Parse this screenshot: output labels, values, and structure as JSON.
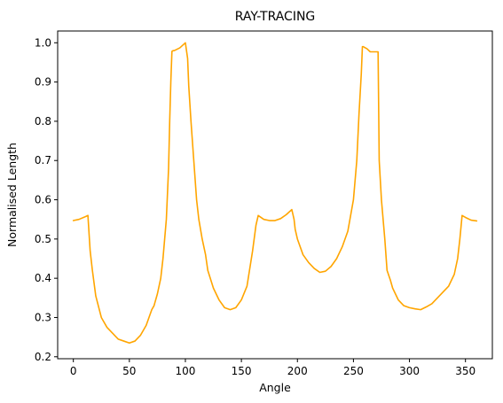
{
  "chart_data": {
    "type": "line",
    "title": "RAY-TRACING",
    "xlabel": "Angle",
    "ylabel": "Normalised Length",
    "xlim": [
      -14,
      374
    ],
    "ylim": [
      0.195,
      1.03
    ],
    "xticks": [
      0,
      50,
      100,
      150,
      200,
      250,
      300,
      350
    ],
    "yticks": [
      0.2,
      0.3,
      0.4,
      0.5,
      0.6,
      0.7,
      0.8,
      0.9,
      1.0
    ],
    "ytick_labels": [
      "0.2",
      "0.3",
      "0.4",
      "0.5",
      "0.6",
      "0.7",
      "0.8",
      "0.9",
      "1.0"
    ],
    "grid": false,
    "series": [
      {
        "color": "#FFA500",
        "x": [
          0,
          5,
          10,
          13,
          15,
          17,
          20,
          25,
          30,
          35,
          40,
          45,
          50,
          55,
          60,
          65,
          70,
          72,
          75,
          78,
          80,
          83,
          85,
          86,
          87,
          88,
          89,
          90,
          95,
          100,
          102,
          103,
          105,
          107,
          110,
          112,
          115,
          118,
          120,
          125,
          130,
          135,
          140,
          145,
          150,
          155,
          160,
          163,
          165,
          167,
          170,
          175,
          180,
          185,
          190,
          195,
          197,
          198,
          200,
          205,
          210,
          215,
          220,
          225,
          230,
          235,
          240,
          245,
          250,
          253,
          255,
          257,
          258,
          259,
          260,
          262,
          265,
          270,
          272,
          273,
          275,
          278,
          280,
          283,
          285,
          290,
          295,
          300,
          305,
          310,
          315,
          320,
          325,
          330,
          335,
          340,
          343,
          345,
          347,
          350,
          355,
          360
        ],
        "y": [
          0.547,
          0.55,
          0.556,
          0.56,
          0.47,
          0.42,
          0.355,
          0.3,
          0.275,
          0.26,
          0.245,
          0.24,
          0.235,
          0.24,
          0.255,
          0.28,
          0.32,
          0.33,
          0.36,
          0.4,
          0.45,
          0.55,
          0.68,
          0.8,
          0.9,
          0.978,
          0.98,
          0.98,
          0.987,
          1.0,
          0.96,
          0.89,
          0.8,
          0.72,
          0.6,
          0.55,
          0.5,
          0.46,
          0.42,
          0.375,
          0.345,
          0.325,
          0.32,
          0.325,
          0.345,
          0.38,
          0.47,
          0.535,
          0.56,
          0.556,
          0.55,
          0.547,
          0.547,
          0.552,
          0.562,
          0.575,
          0.55,
          0.525,
          0.5,
          0.46,
          0.44,
          0.425,
          0.415,
          0.418,
          0.43,
          0.45,
          0.48,
          0.52,
          0.6,
          0.7,
          0.82,
          0.92,
          0.99,
          0.99,
          0.988,
          0.985,
          0.977,
          0.977,
          0.977,
          0.7,
          0.6,
          0.5,
          0.42,
          0.395,
          0.375,
          0.345,
          0.33,
          0.325,
          0.322,
          0.32,
          0.327,
          0.335,
          0.35,
          0.365,
          0.38,
          0.41,
          0.45,
          0.5,
          0.56,
          0.555,
          0.548,
          0.546
        ]
      }
    ]
  }
}
